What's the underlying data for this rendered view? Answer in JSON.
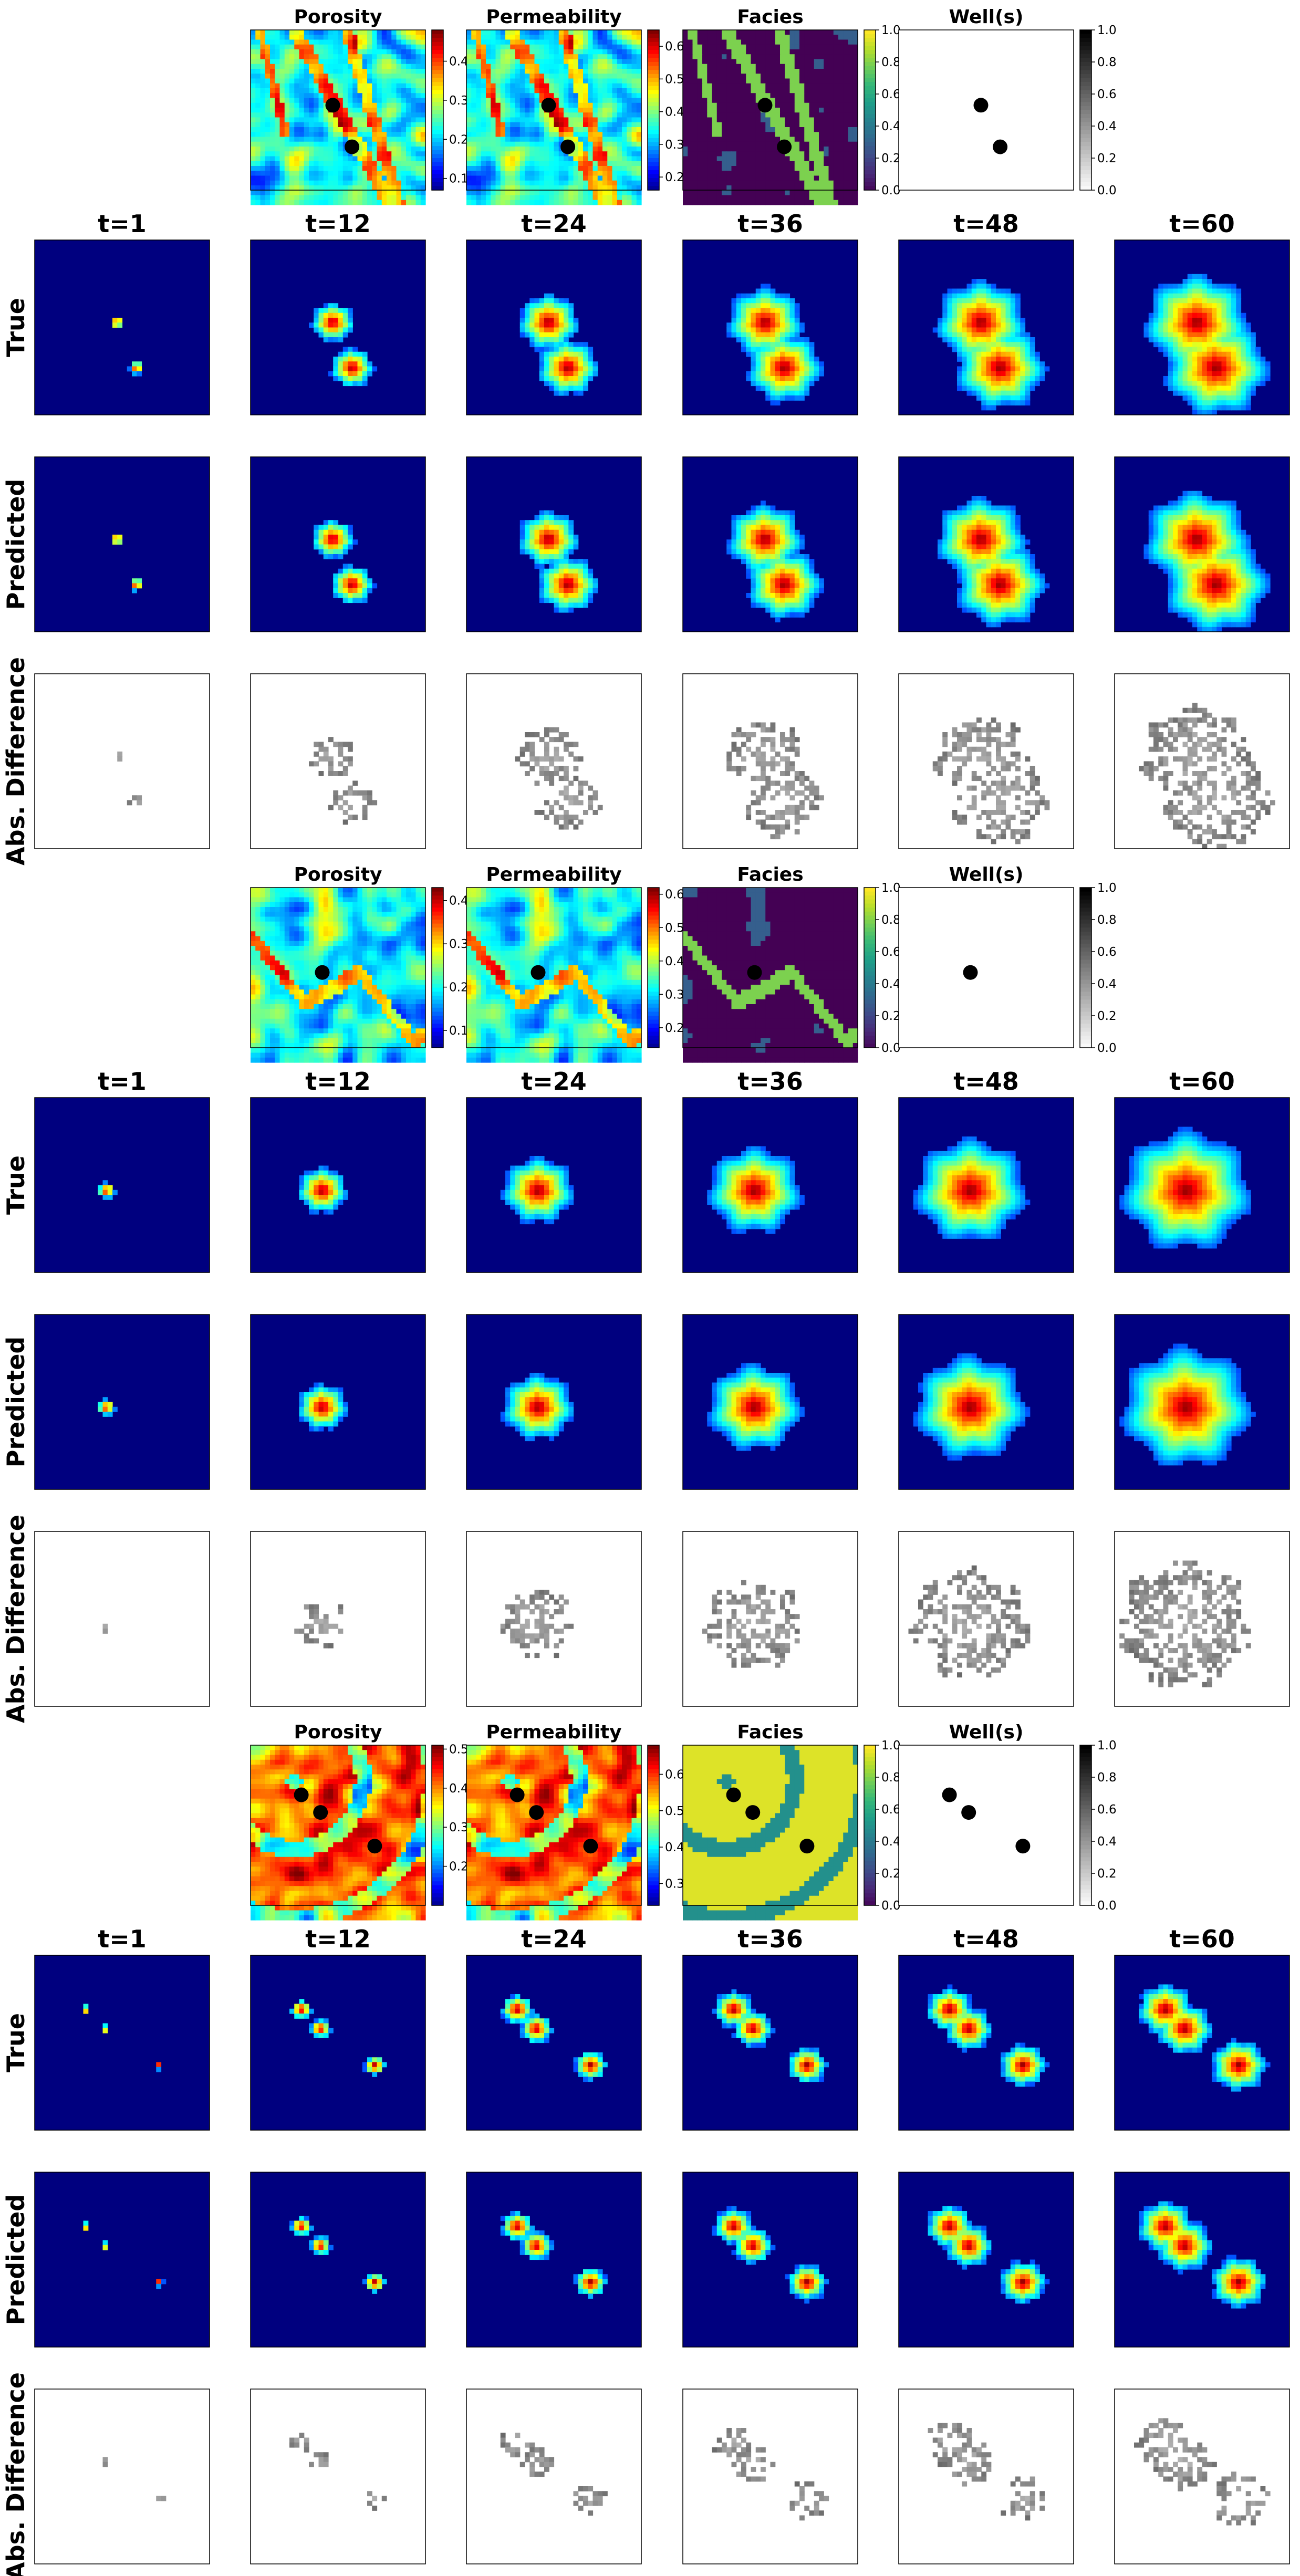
{
  "chart_data": {
    "type": "heatmap",
    "description_note": "",
    "input_titles": [
      "Porosity",
      "Permeability",
      "Facies",
      "Well(s)"
    ],
    "timestep_titles": [
      "t=1",
      "t=12",
      "t=24",
      "t=36",
      "t=48",
      "t=60"
    ],
    "row_labels": [
      "True",
      "Predicted",
      "Abs. Difference"
    ],
    "colormaps": {
      "porosity": "jet",
      "permeability": "jet",
      "facies": "viridis",
      "wells": "gray_r",
      "true": "jet",
      "predicted": "jet",
      "difference": "gray_r"
    },
    "grid": false,
    "cases": [
      {
        "porosity_colorbar": {
          "range": [
            0.07,
            0.48
          ],
          "ticks": [
            "0.1",
            "0.2",
            "0.3",
            "0.4"
          ]
        },
        "permeability_colorbar": {
          "range": [
            0.16,
            0.65
          ],
          "ticks": [
            "0.2",
            "0.3",
            "0.4",
            "0.5",
            "0.6"
          ]
        },
        "facies_colorbar": {
          "range": [
            0.0,
            1.0
          ],
          "ticks": [
            "0.0",
            "0.2",
            "0.4",
            "0.6",
            "0.8",
            "1.0"
          ]
        },
        "wells_colorbar": {
          "range": [
            0.0,
            1.0
          ],
          "ticks": [
            "0.0",
            "0.2",
            "0.4",
            "0.6",
            "0.8",
            "1.0"
          ]
        },
        "wells": [
          {
            "x": 0.47,
            "y": 0.47
          },
          {
            "x": 0.58,
            "y": 0.73
          }
        ],
        "plume_radius": [
          0.04,
          0.12,
          0.17,
          0.21,
          0.25,
          0.29
        ]
      },
      {
        "porosity_colorbar": {
          "range": [
            0.06,
            0.43
          ],
          "ticks": [
            "0.1",
            "0.2",
            "0.3",
            "0.4"
          ]
        },
        "permeability_colorbar": {
          "range": [
            0.14,
            0.62
          ],
          "ticks": [
            "0.2",
            "0.3",
            "0.4",
            "0.5",
            "0.6"
          ]
        },
        "facies_colorbar": {
          "range": [
            0.0,
            1.0
          ],
          "ticks": [
            "0.0",
            "0.2",
            "0.4",
            "0.6",
            "0.8",
            "1.0"
          ]
        },
        "wells_colorbar": {
          "range": [
            0.0,
            1.0
          ],
          "ticks": [
            "0.0",
            "0.2",
            "0.4",
            "0.6",
            "0.8",
            "1.0"
          ]
        },
        "wells": [
          {
            "x": 0.41,
            "y": 0.53
          }
        ],
        "plume_radius": [
          0.05,
          0.14,
          0.2,
          0.26,
          0.31,
          0.36
        ]
      },
      {
        "porosity_colorbar": {
          "range": [
            0.1,
            0.51
          ],
          "ticks": [
            "0.2",
            "0.3",
            "0.4",
            "0.5"
          ]
        },
        "permeability_colorbar": {
          "range": [
            0.24,
            0.68
          ],
          "ticks": [
            "0.3",
            "0.4",
            "0.5",
            "0.6"
          ]
        },
        "facies_colorbar": {
          "range": [
            0.0,
            1.0
          ],
          "ticks": [
            "0.0",
            "0.2",
            "0.4",
            "0.6",
            "0.8",
            "1.0"
          ]
        },
        "wells_colorbar": {
          "range": [
            0.0,
            1.0
          ],
          "ticks": [
            "0.0",
            "0.2",
            "0.4",
            "0.6",
            "0.8",
            "1.0"
          ]
        },
        "wells": [
          {
            "x": 0.29,
            "y": 0.31
          },
          {
            "x": 0.4,
            "y": 0.42
          },
          {
            "x": 0.71,
            "y": 0.63
          }
        ],
        "plume_radius": [
          0.025,
          0.06,
          0.09,
          0.11,
          0.13,
          0.155
        ]
      }
    ]
  }
}
